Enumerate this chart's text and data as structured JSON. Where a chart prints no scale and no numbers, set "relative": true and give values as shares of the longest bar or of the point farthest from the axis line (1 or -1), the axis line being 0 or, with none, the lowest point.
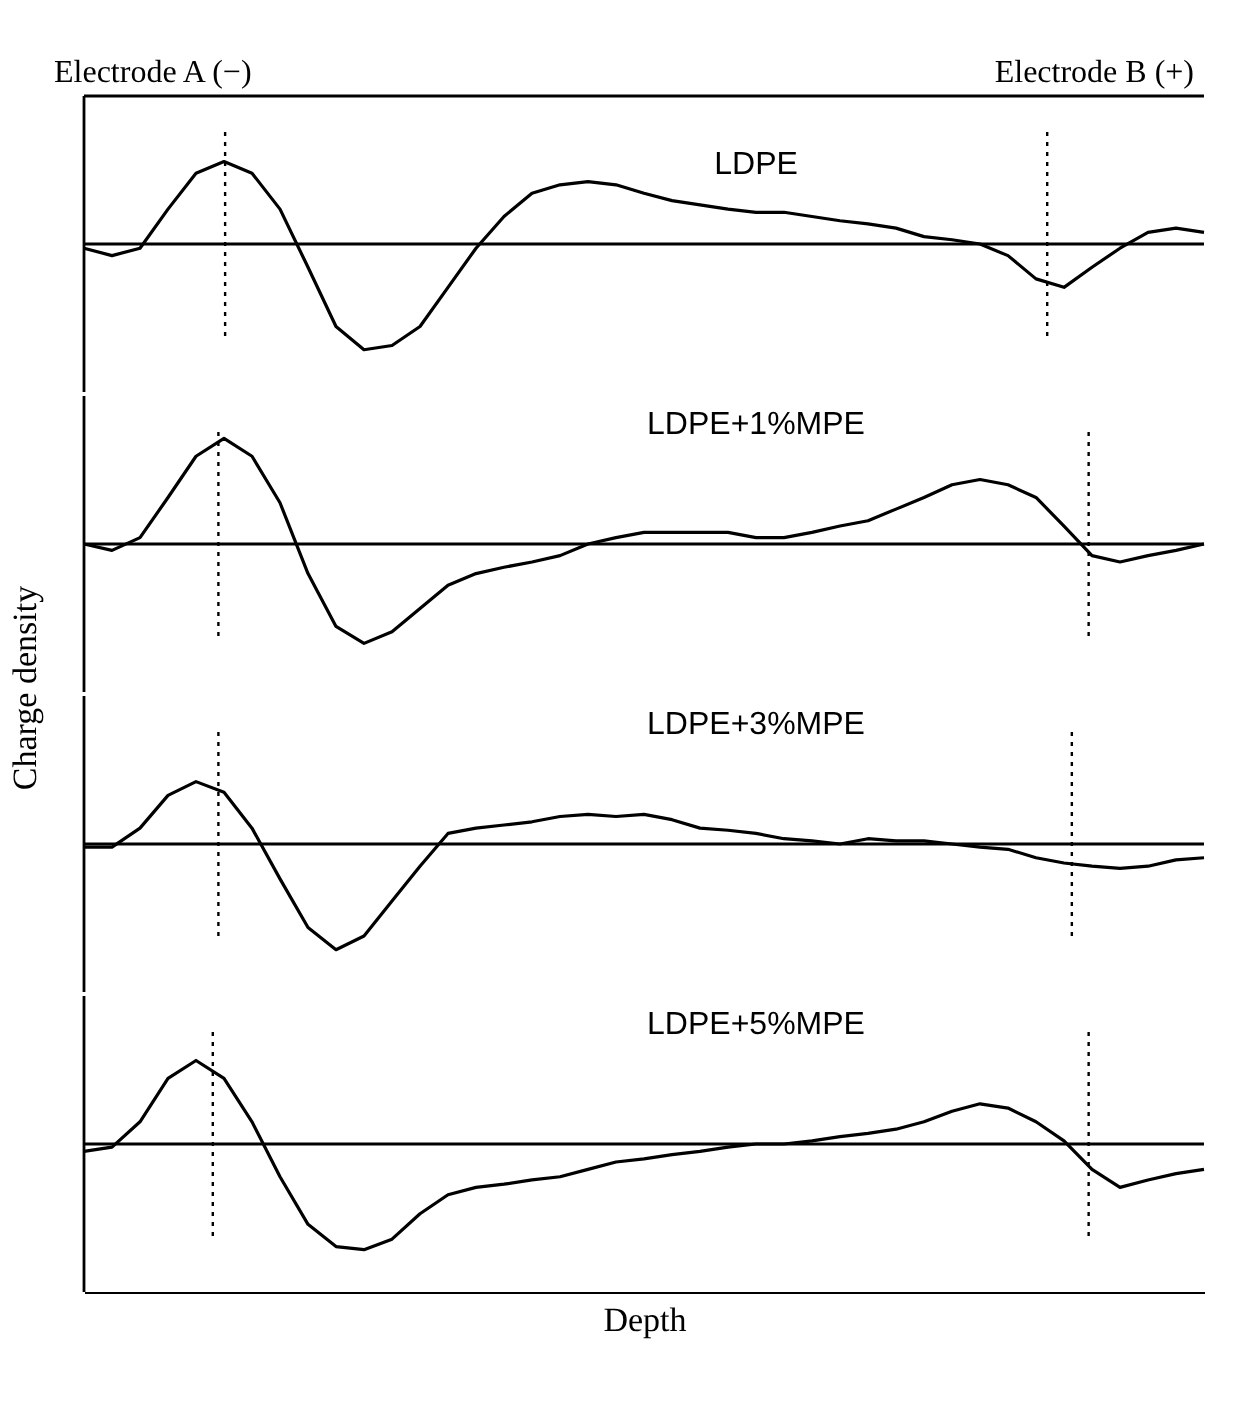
{
  "chart_data": [
    {
      "type": "line",
      "relative": true,
      "tick_labels": false,
      "annotations": [
        "Electrode A (−)",
        "Electrode B (+)"
      ],
      "categories": [
        null,
        null,
        null,
        null,
        null,
        null,
        null,
        null,
        null,
        null,
        null,
        null,
        null,
        null,
        null,
        null,
        null,
        null,
        null,
        null,
        null,
        null,
        null,
        null,
        null,
        null,
        null,
        null,
        null,
        null,
        null,
        null,
        null,
        null,
        null,
        null,
        null,
        null,
        null,
        null,
        null
      ],
      "series": [
        {
          "name": "LDPE",
          "color": "#000000",
          "values": [
            -0.04,
            -0.11,
            -0.04,
            0.33,
            0.67,
            0.78,
            0.67,
            0.33,
            -0.22,
            -0.78,
            -1,
            -0.96,
            -0.78,
            -0.41,
            -0.04,
            0.26,
            0.48,
            0.56,
            0.59,
            0.56,
            0.48,
            0.41,
            0.37,
            0.33,
            0.3,
            0.3,
            0.26,
            0.22,
            0.19,
            0.15,
            0.07,
            0.04,
            0,
            -0.11,
            -0.33,
            -0.41,
            -0.22,
            -0.04,
            0.11,
            0.15,
            0.11
          ]
        }
      ]
    },
    {
      "type": "line",
      "relative": true,
      "tick_labels": false,
      "ylabel": "Charge density",
      "categories": [
        null,
        null,
        null,
        null,
        null,
        null,
        null,
        null,
        null,
        null,
        null,
        null,
        null,
        null,
        null,
        null,
        null,
        null,
        null,
        null,
        null,
        null,
        null,
        null,
        null,
        null,
        null,
        null,
        null,
        null,
        null,
        null,
        null,
        null,
        null,
        null,
        null,
        null,
        null,
        null,
        null
      ],
      "series": [
        {
          "name": "LDPE+1%MPE",
          "color": "#000000",
          "values": [
            0,
            -0.06,
            0.06,
            0.44,
            0.83,
            1,
            0.83,
            0.39,
            -0.28,
            -0.78,
            -0.94,
            -0.83,
            -0.61,
            -0.39,
            -0.28,
            -0.22,
            -0.17,
            -0.11,
            0,
            0.06,
            0.11,
            0.11,
            0.11,
            0.11,
            0.06,
            0.06,
            0.11,
            0.17,
            0.22,
            0.33,
            0.44,
            0.56,
            0.61,
            0.56,
            0.44,
            0.17,
            -0.11,
            -0.17,
            -0.11,
            -0.06,
            0
          ]
        }
      ]
    },
    {
      "type": "line",
      "relative": true,
      "tick_labels": false,
      "categories": [
        null,
        null,
        null,
        null,
        null,
        null,
        null,
        null,
        null,
        null,
        null,
        null,
        null,
        null,
        null,
        null,
        null,
        null,
        null,
        null,
        null,
        null,
        null,
        null,
        null,
        null,
        null,
        null,
        null,
        null,
        null,
        null,
        null,
        null,
        null,
        null,
        null,
        null,
        null,
        null,
        null
      ],
      "series": [
        {
          "name": "LDPE+3%MPE",
          "color": "#000000",
          "values": [
            -0.03,
            -0.03,
            0.15,
            0.46,
            0.59,
            0.49,
            0.15,
            -0.33,
            -0.79,
            -1,
            -0.87,
            -0.54,
            -0.21,
            0.1,
            0.15,
            0.18,
            0.21,
            0.26,
            0.28,
            0.26,
            0.28,
            0.23,
            0.15,
            0.13,
            0.1,
            0.05,
            0.03,
            0,
            0.05,
            0.03,
            0.03,
            0,
            -0.03,
            -0.05,
            -0.13,
            -0.18,
            -0.21,
            -0.23,
            -0.21,
            -0.15,
            -0.13
          ]
        }
      ]
    },
    {
      "type": "line",
      "relative": true,
      "tick_labels": false,
      "xlabel": "Depth",
      "categories": [
        null,
        null,
        null,
        null,
        null,
        null,
        null,
        null,
        null,
        null,
        null,
        null,
        null,
        null,
        null,
        null,
        null,
        null,
        null,
        null,
        null,
        null,
        null,
        null,
        null,
        null,
        null,
        null,
        null,
        null,
        null,
        null,
        null,
        null,
        null,
        null,
        null,
        null,
        null,
        null,
        null
      ],
      "series": [
        {
          "name": "LDPE+5%MPE",
          "color": "#000000",
          "values": [
            -0.07,
            -0.03,
            0.21,
            0.62,
            0.79,
            0.62,
            0.21,
            -0.31,
            -0.76,
            -0.97,
            -1,
            -0.9,
            -0.66,
            -0.48,
            -0.41,
            -0.38,
            -0.34,
            -0.31,
            -0.24,
            -0.17,
            -0.14,
            -0.1,
            -0.07,
            -0.03,
            0,
            0,
            0.03,
            0.07,
            0.1,
            0.14,
            0.21,
            0.31,
            0.38,
            0.34,
            0.21,
            0.03,
            -0.24,
            -0.41,
            -0.34,
            -0.28,
            -0.24
          ]
        }
      ]
    }
  ]
}
